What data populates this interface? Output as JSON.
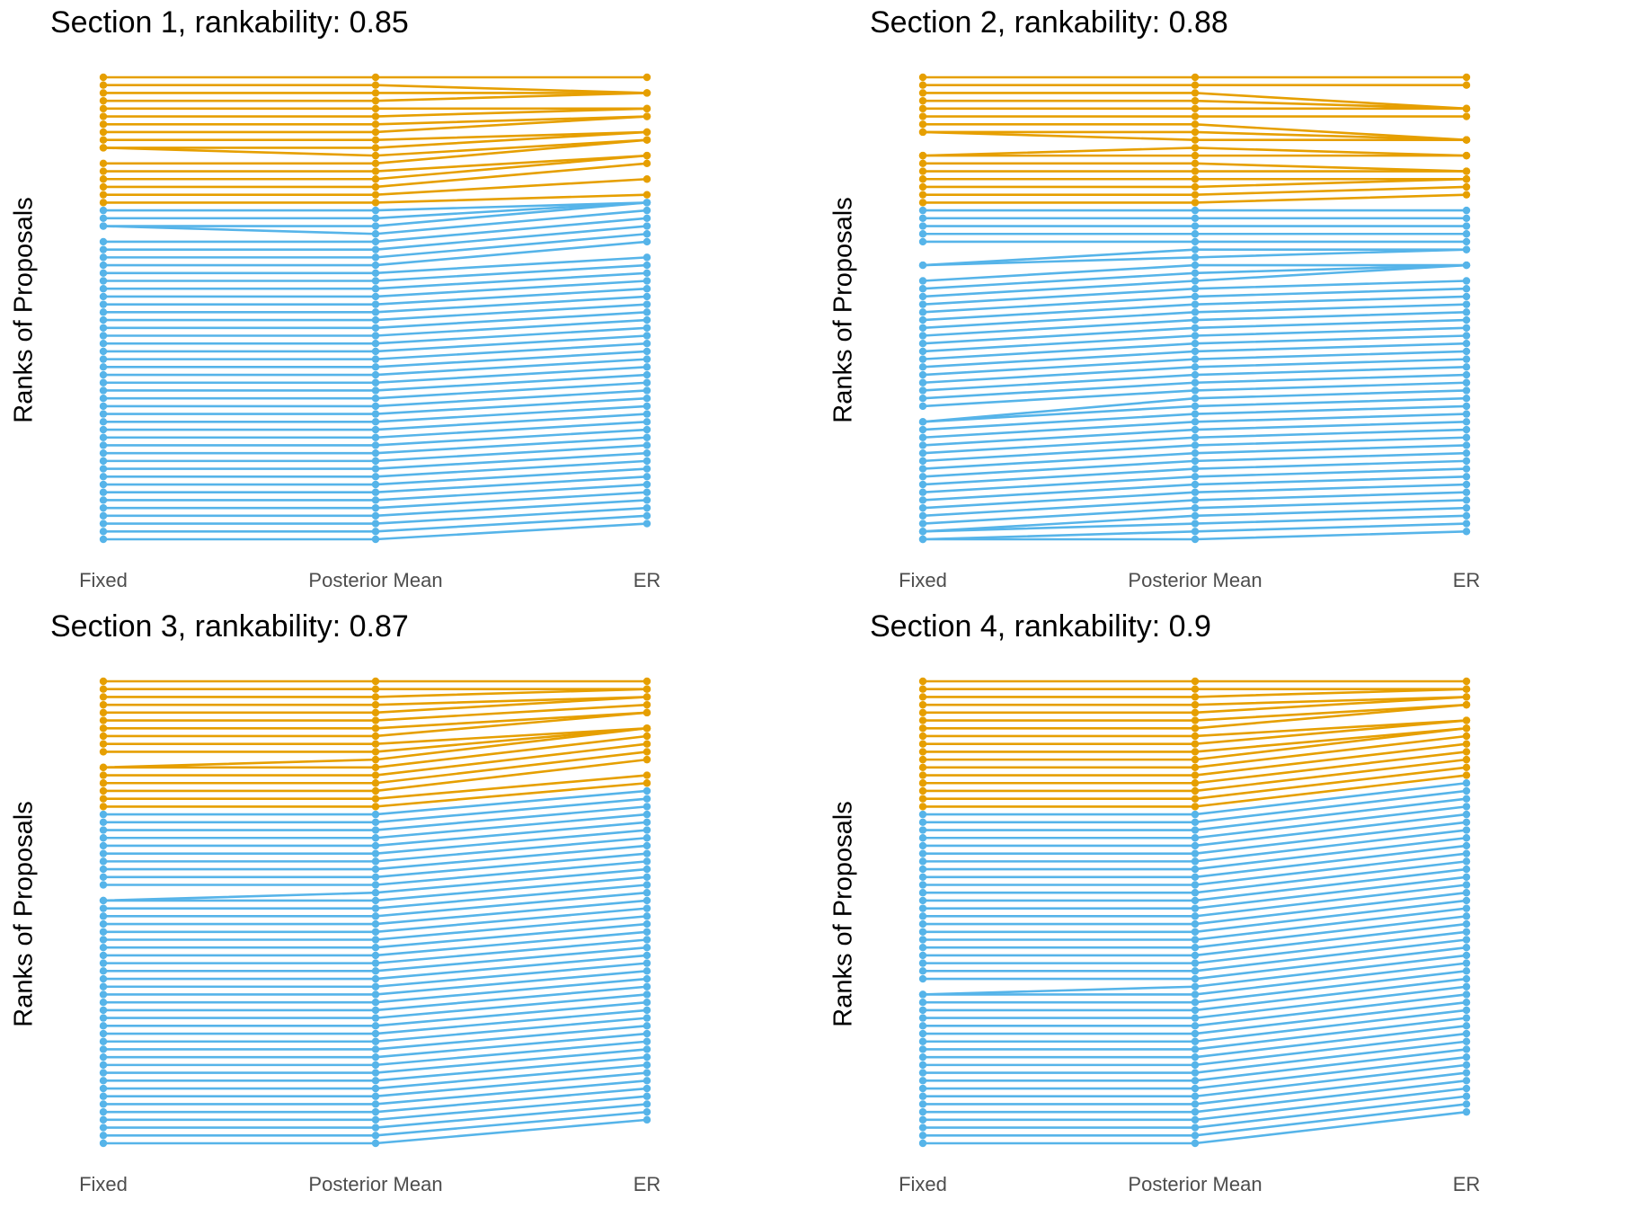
{
  "chart_data": [
    {
      "type": "line",
      "title": "Section 1, rankability: 0.85",
      "ylabel": "Ranks of Proposals",
      "xlabel": "",
      "categories": [
        "Fixed",
        "Posterior Mean",
        "ER"
      ],
      "grid": false,
      "colors": {
        "top": "#E69F00",
        "other": "#56B4E9"
      },
      "ylim": [
        1,
        60
      ],
      "n_proposals": 60,
      "n_top": 17,
      "fixed_ranks": [
        1,
        2,
        3,
        4,
        5,
        6,
        7,
        8,
        9,
        10,
        10,
        12,
        13,
        14,
        15,
        16,
        17,
        18,
        19,
        20,
        20,
        22,
        23,
        24,
        25,
        26,
        27,
        28,
        29,
        30,
        31,
        32,
        33,
        34,
        35,
        36,
        37,
        38,
        39,
        40,
        41,
        42,
        43,
        44,
        45,
        46,
        47,
        48,
        49,
        50,
        51,
        52,
        53,
        54,
        55,
        56,
        57,
        58,
        59,
        60
      ],
      "er_ranks": [
        1,
        3,
        3,
        3,
        5,
        5,
        6,
        6,
        8,
        8,
        9,
        9,
        11,
        11,
        12,
        14,
        16,
        17,
        17,
        17,
        18,
        19,
        20,
        21,
        22,
        24,
        25,
        26,
        27,
        28,
        29,
        30,
        31,
        32,
        33,
        34,
        35,
        36,
        37,
        38,
        39,
        40,
        41,
        42,
        43,
        44,
        45,
        46,
        47,
        48,
        49,
        50,
        51,
        52,
        53,
        54,
        55,
        56,
        57,
        58
      ]
    },
    {
      "type": "line",
      "title": "Section 2, rankability: 0.88",
      "ylabel": "Ranks of Proposals",
      "xlabel": "",
      "categories": [
        "Fixed",
        "Posterior Mean",
        "ER"
      ],
      "grid": false,
      "colors": {
        "top": "#E69F00",
        "other": "#56B4E9"
      },
      "ylim": [
        1,
        60
      ],
      "n_proposals": 60,
      "n_top": 17,
      "fixed_ranks": [
        1,
        2,
        3,
        4,
        5,
        6,
        7,
        8,
        8,
        11,
        11,
        12,
        13,
        14,
        15,
        16,
        17,
        18,
        19,
        20,
        21,
        22,
        25,
        25,
        27,
        28,
        29,
        30,
        31,
        32,
        33,
        34,
        35,
        36,
        37,
        38,
        39,
        40,
        41,
        42,
        43,
        45,
        45,
        46,
        47,
        48,
        49,
        50,
        51,
        52,
        53,
        54,
        55,
        56,
        57,
        58,
        59,
        59,
        60,
        60
      ],
      "er_ranks": [
        1,
        2,
        5,
        5,
        5,
        6,
        9,
        9,
        9,
        11,
        11,
        13,
        13,
        14,
        14,
        15,
        16,
        18,
        19,
        20,
        21,
        22,
        23,
        23,
        25,
        25,
        25,
        27,
        28,
        29,
        30,
        31,
        32,
        33,
        34,
        35,
        36,
        37,
        38,
        39,
        40,
        41,
        42,
        43,
        44,
        45,
        46,
        47,
        48,
        49,
        50,
        51,
        52,
        53,
        54,
        55,
        56,
        57,
        58,
        59
      ]
    },
    {
      "type": "line",
      "title": "Section 3, rankability: 0.87",
      "ylabel": "Ranks of Proposals",
      "xlabel": "",
      "categories": [
        "Fixed",
        "Posterior Mean",
        "ER"
      ],
      "grid": false,
      "colors": {
        "top": "#E69F00",
        "other": "#56B4E9"
      },
      "ylim": [
        1,
        60
      ],
      "n_proposals": 60,
      "n_top": 17,
      "fixed_ranks": [
        1,
        2,
        3,
        4,
        5,
        6,
        7,
        8,
        9,
        10,
        12,
        12,
        13,
        14,
        15,
        16,
        17,
        18,
        19,
        20,
        21,
        22,
        23,
        24,
        25,
        26,
        27,
        29,
        29,
        30,
        31,
        32,
        33,
        34,
        35,
        36,
        37,
        38,
        39,
        40,
        41,
        42,
        43,
        44,
        45,
        46,
        47,
        48,
        49,
        50,
        51,
        52,
        53,
        54,
        55,
        56,
        57,
        58,
        59,
        60
      ],
      "er_ranks": [
        1,
        2,
        2,
        3,
        3,
        4,
        5,
        5,
        7,
        7,
        7,
        8,
        9,
        10,
        11,
        13,
        14,
        15,
        16,
        17,
        18,
        19,
        20,
        21,
        22,
        23,
        24,
        25,
        26,
        27,
        28,
        29,
        30,
        31,
        32,
        33,
        34,
        35,
        36,
        37,
        38,
        39,
        40,
        41,
        42,
        43,
        44,
        45,
        46,
        47,
        48,
        49,
        50,
        51,
        52,
        53,
        54,
        55,
        56,
        57
      ]
    },
    {
      "type": "line",
      "title": "Section 4, rankability: 0.9",
      "ylabel": "Ranks of Proposals",
      "xlabel": "",
      "categories": [
        "Fixed",
        "Posterior Mean",
        "ER"
      ],
      "grid": false,
      "colors": {
        "top": "#E69F00",
        "other": "#56B4E9"
      },
      "ylim": [
        1,
        60
      ],
      "n_proposals": 60,
      "n_top": 17,
      "fixed_ranks": [
        1,
        2,
        3,
        4,
        5,
        6,
        7,
        8,
        9,
        10,
        11,
        12,
        13,
        14,
        15,
        16,
        17,
        18,
        19,
        20,
        21,
        22,
        23,
        24,
        25,
        26,
        27,
        28,
        29,
        30,
        31,
        32,
        33,
        34,
        35,
        36,
        37,
        38,
        39,
        41,
        41,
        42,
        43,
        44,
        45,
        46,
        47,
        48,
        49,
        50,
        51,
        52,
        53,
        54,
        55,
        56,
        57,
        58,
        59,
        60
      ],
      "er_ranks": [
        1,
        2,
        2,
        3,
        3,
        4,
        4,
        6,
        6,
        7,
        7,
        8,
        9,
        10,
        11,
        12,
        13,
        14,
        15,
        16,
        17,
        18,
        19,
        20,
        21,
        22,
        23,
        24,
        25,
        26,
        27,
        28,
        29,
        30,
        31,
        32,
        33,
        34,
        35,
        36,
        37,
        38,
        39,
        40,
        41,
        42,
        43,
        44,
        45,
        46,
        47,
        48,
        49,
        50,
        51,
        52,
        53,
        54,
        55,
        56
      ]
    }
  ]
}
